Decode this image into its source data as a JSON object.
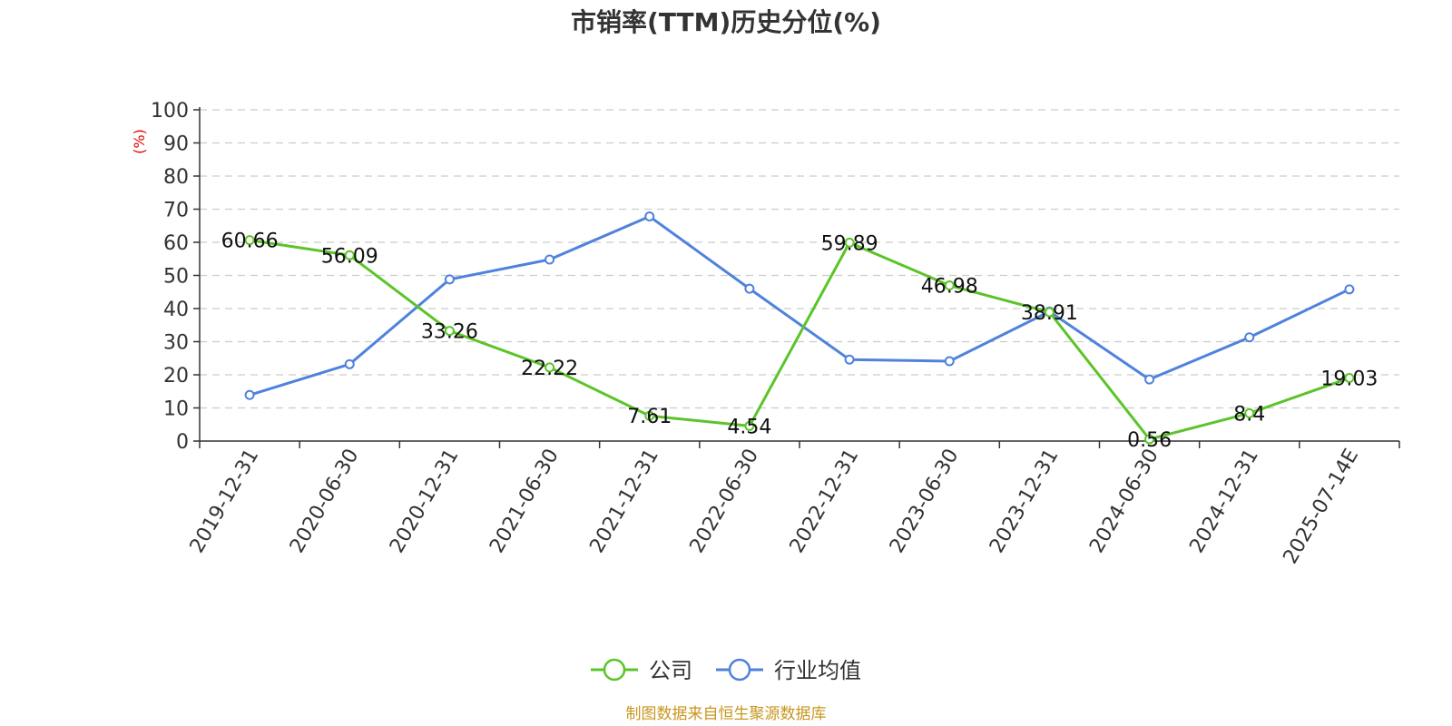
{
  "chart_data": {
    "type": "line",
    "title": "市销率(TTM)历史分位(%)",
    "ylabel": "(%)",
    "ylim": [
      0,
      100
    ],
    "yticks": [
      0,
      10,
      20,
      30,
      40,
      50,
      60,
      70,
      80,
      90,
      100
    ],
    "grid": true,
    "legend_position": "bottom-center",
    "categories": [
      "2019-12-31",
      "2020-06-30",
      "2020-12-31",
      "2021-06-30",
      "2021-12-31",
      "2022-06-30",
      "2022-12-31",
      "2023-06-30",
      "2023-12-31",
      "2024-06-30",
      "2024-12-31",
      "2025-07-14E"
    ],
    "series": [
      {
        "name": "公司",
        "color": "#5bc429",
        "values": [
          60.66,
          56.09,
          33.26,
          22.22,
          7.61,
          4.54,
          59.89,
          46.98,
          38.91,
          0.56,
          8.4,
          19.03
        ],
        "labels": [
          "60.66",
          "56.09",
          "33.26",
          "22.22",
          "7.61",
          "4.54",
          "59.89",
          "46.98",
          "38.91",
          "0.56",
          "8.4",
          "19.03"
        ]
      },
      {
        "name": "行业均值",
        "color": "#4f82dc",
        "values": [
          13.9,
          23.2,
          48.8,
          54.8,
          67.8,
          46.0,
          24.6,
          24.1,
          39.1,
          18.6,
          31.3,
          45.8
        ]
      }
    ],
    "source": "制图数据来自恒生聚源数据库"
  }
}
